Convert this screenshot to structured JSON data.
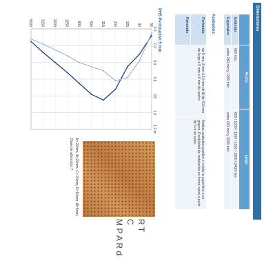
{
  "header": {
    "section": "Dimensiones",
    "top_caption": ""
  },
  "dimensions_table": {
    "columns": [
      "",
      "Ancho",
      "Largo"
    ],
    "rows": [
      {
        "label": "Estándar",
        "ancho": "600 mm",
        "largo": "600 / 1000 / 1200 / 1500 / 1800 / 2400 mm"
      },
      {
        "label": "Especiales",
        "ancho": "entre 260 mm y 1200 mm",
        "largo": "entre 400 mm y 3000 mm"
      }
    ]
  },
  "finishes": {
    "title": "Acabados:",
    "rows": [
      {
        "label": "Perforado",
        "desc": "de 5 mm, 8 mm ó 14 mm de Ø de 400 mm de largo x 5 mm ó 8 mm de ancho",
        "notes": "Ambos acabados pueden ir a toda la superficie o en grupos. Posibilidad de instalación en forma curva a partir de 5 m de radio."
      },
      {
        "label": "Ranurado",
        "desc": "",
        "notes": ""
      }
    ]
  },
  "chart_data": {
    "type": "line",
    "title": "PH5 Perforación 5 mm",
    "xlabel": "",
    "ylabel": "",
    "x": [
      50,
      80,
      125,
      200,
      315,
      500,
      800,
      1250,
      2000,
      3150,
      5000
    ],
    "x_tick_labels": [
      "50",
      "80",
      "125",
      "200",
      "315",
      "500",
      "800",
      "1250",
      "2000",
      "3150",
      "5000"
    ],
    "y_tick_labels": [
      "0.0",
      "0.2",
      "0.4",
      "0.6",
      "0.8",
      "1.0",
      "1.2 αs"
    ],
    "ylim": [
      0,
      1.2
    ],
    "grid": true,
    "series": [
      {
        "name": "",
        "color": "#1f3f7a",
        "values": [
          0.08,
          0.3,
          0.45,
          0.72,
          0.85,
          0.78,
          0.65,
          0.52,
          0.4,
          0.28,
          0.15
        ]
      },
      {
        "name": "",
        "color": "#9aa9d8",
        "values": [
          0.05,
          0.38,
          0.58,
          0.62,
          0.5,
          0.45,
          0.4,
          0.32,
          0.25,
          0.18,
          0.12
        ]
      }
    ]
  },
  "panel_caption": {
    "lines": [
      "A= 20mm, B=20mm, C= 20mm, D=10mm, Ø=5mm.",
      "Clase de absorción ?"
    ]
  },
  "side_letters": [
    "R",
    "T",
    "C",
    "M",
    "P",
    "A",
    "R",
    "d"
  ]
}
